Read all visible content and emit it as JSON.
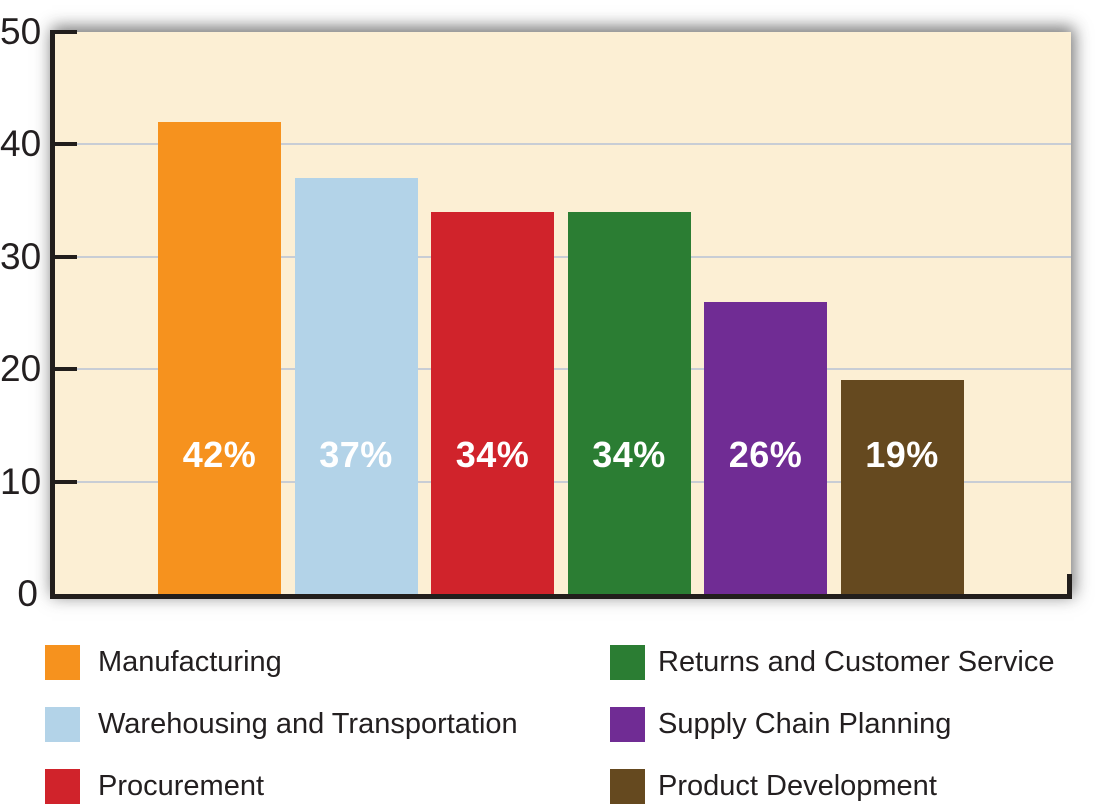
{
  "chart_data": {
    "type": "bar",
    "title": "",
    "xlabel": "",
    "ylabel": "",
    "ylim": [
      0,
      50
    ],
    "yticks": [
      0,
      10,
      20,
      30,
      40,
      50
    ],
    "gridline_values": [
      10,
      20,
      30,
      40
    ],
    "grid": "horizontal-only",
    "legend_position": "below-chart-two-columns",
    "categories": [
      "Manufacturing",
      "Warehousing and Transportation",
      "Procurement",
      "Returns and Customer Service",
      "Supply Chain Planning",
      "Product Development"
    ],
    "values": [
      42,
      37,
      34,
      34,
      26,
      19
    ],
    "bar_labels": [
      "42%",
      "37%",
      "34%",
      "34%",
      "26%",
      "19%"
    ],
    "bar_colors": [
      "#F6921E",
      "#B3D3E8",
      "#D0232B",
      "#2B7D33",
      "#702C94",
      "#65491F"
    ],
    "colors": {
      "plot_background": "#FCEFD4",
      "page_background": "#FFFFFF",
      "gridline": "#C8CDD5",
      "axis": "#221E1C",
      "tick_text": "#231F20",
      "legend_text": "#231F20",
      "bar_label_text": "#FFFFFF"
    }
  }
}
